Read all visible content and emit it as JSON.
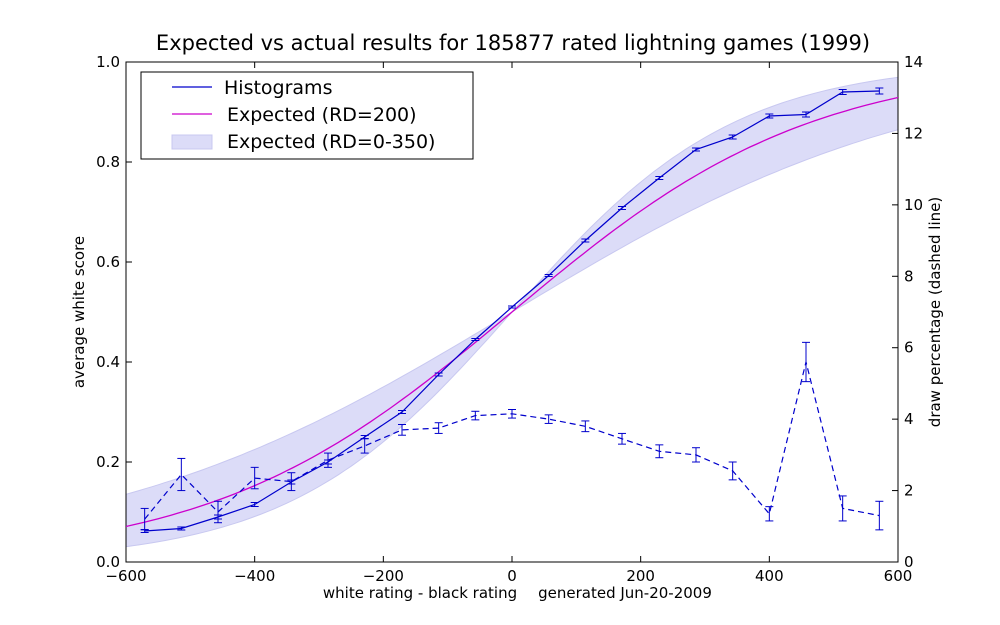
{
  "chart_data": {
    "type": "line",
    "title": "Expected vs actual results for 185877 rated lightning games (1999)",
    "xlabel": "white rating - black rating",
    "xlabel_note": "generated Jun-20-2009",
    "ylabel": "average white score",
    "ylabel_right": "draw percentage (dashed line)",
    "xlim": [
      -600,
      600
    ],
    "ylim": [
      0.0,
      1.0
    ],
    "ylim_right": [
      0,
      14
    ],
    "x_ticks": [
      "−600",
      "−400",
      "−200",
      "0",
      "200",
      "400",
      "600"
    ],
    "x_tick_values": [
      -600,
      -400,
      -200,
      0,
      200,
      400,
      600
    ],
    "y_ticks": [
      "0.0",
      "0.2",
      "0.4",
      "0.6",
      "0.8",
      "1.0"
    ],
    "y_tick_values": [
      0.0,
      0.2,
      0.4,
      0.6,
      0.8,
      1.0
    ],
    "y_right_ticks": [
      "0",
      "2",
      "4",
      "6",
      "8",
      "10",
      "12",
      "14"
    ],
    "y_right_tick_values": [
      0,
      2,
      4,
      6,
      8,
      10,
      12,
      14
    ],
    "legend": {
      "position": "top-left",
      "entries": [
        "Histograms",
        "Expected (RD=200)",
        "Expected (RD=0-350)"
      ]
    },
    "x": [
      -571,
      -514,
      -457,
      -400,
      -343,
      -286,
      -229,
      -171,
      -114,
      -57,
      0,
      57,
      114,
      171,
      229,
      286,
      343,
      400,
      457,
      514,
      571
    ],
    "series": [
      {
        "name": "Histograms",
        "axis": "left",
        "style": "solid",
        "color": "#0000cc",
        "values": [
          0.062,
          0.067,
          0.09,
          0.115,
          0.16,
          0.2,
          0.25,
          0.3,
          0.375,
          0.445,
          0.51,
          0.573,
          0.643,
          0.708,
          0.768,
          0.825,
          0.85,
          0.892,
          0.895,
          0.94,
          0.942
        ],
        "errors": [
          0.003,
          0.003,
          0.004,
          0.004,
          0.004,
          0.004,
          0.003,
          0.003,
          0.003,
          0.002,
          0.002,
          0.002,
          0.003,
          0.003,
          0.003,
          0.003,
          0.004,
          0.004,
          0.005,
          0.005,
          0.006
        ]
      },
      {
        "name": "Draw percentage",
        "axis": "right",
        "style": "dashed",
        "color": "#0000cc",
        "values": [
          1.2,
          2.45,
          1.4,
          2.35,
          2.25,
          2.85,
          3.25,
          3.7,
          3.75,
          4.1,
          4.15,
          4.0,
          3.8,
          3.45,
          3.1,
          3.0,
          2.55,
          1.35,
          5.6,
          1.5,
          1.3
        ],
        "errors": [
          0.3,
          0.45,
          0.3,
          0.3,
          0.25,
          0.2,
          0.2,
          0.15,
          0.15,
          0.12,
          0.12,
          0.12,
          0.15,
          0.15,
          0.18,
          0.2,
          0.25,
          0.2,
          0.55,
          0.35,
          0.4
        ]
      }
    ],
    "expected": {
      "name": "Expected (RD=200)",
      "color": "#cc00cc",
      "formula": "logistic, scale 400, RD=200"
    },
    "expected_band": {
      "name": "Expected (RD=0-350)",
      "color": "#dcdcf8",
      "edge_color": "#c8c8f0"
    }
  }
}
